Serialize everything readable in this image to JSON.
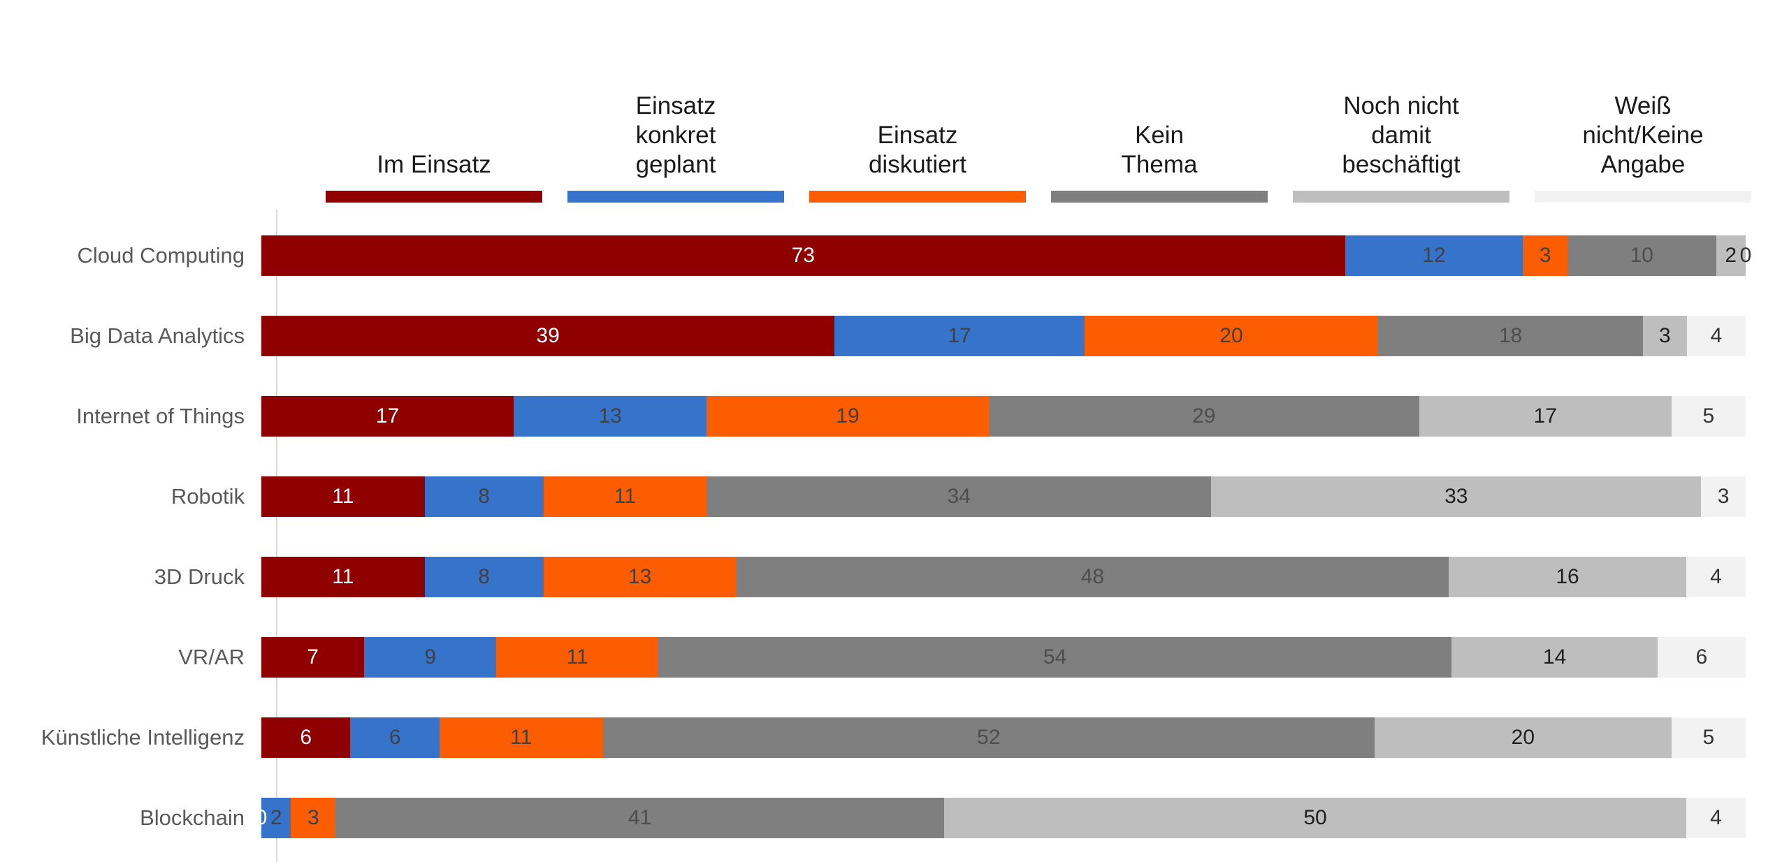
{
  "chart_data": {
    "type": "bar",
    "subtype": "horizontal-stacked-100-percent",
    "title": "",
    "xlabel": "",
    "ylabel": "",
    "xlim": [
      0,
      100
    ],
    "grid": false,
    "legend_position": "top",
    "axis_color": "#d9d9d9",
    "category_label_color": "#595959",
    "categories": [
      "Cloud Computing",
      "Big Data Analytics",
      "Internet of Things",
      "Robotik",
      "3D Druck",
      "VR/AR",
      "Künstliche Intelligenz",
      "Blockchain"
    ],
    "series": [
      {
        "name": "Im Einsatz",
        "legend_label": "Im Einsatz",
        "color": "#8f0000",
        "label_color": "#ffffff",
        "values": [
          73,
          39,
          17,
          11,
          11,
          7,
          6,
          0
        ]
      },
      {
        "name": "Einsatz konkret geplant",
        "legend_label": "Einsatz\nkonkret\ngeplant",
        "color": "#3674cc",
        "label_color": "#404040",
        "values": [
          12,
          17,
          13,
          8,
          8,
          9,
          6,
          2
        ]
      },
      {
        "name": "Einsatz diskutiert",
        "legend_label": "Einsatz\ndiskutiert",
        "color": "#fc5d00",
        "label_color": "#404040",
        "values": [
          3,
          20,
          19,
          11,
          13,
          11,
          11,
          3
        ]
      },
      {
        "name": "Kein Thema",
        "legend_label": "Kein\nThema",
        "color": "#7f7f7f",
        "label_color": "#4d4d4d",
        "values": [
          10,
          18,
          29,
          34,
          48,
          54,
          52,
          41
        ]
      },
      {
        "name": "Noch nicht damit beschäftigt",
        "legend_label": "Noch nicht\ndamit\nbeschäftigt",
        "color": "#bebebe",
        "label_color": "#1f1f1f",
        "values": [
          2,
          3,
          17,
          33,
          16,
          14,
          20,
          50
        ]
      },
      {
        "name": "Weiß nicht/Keine Angabe",
        "legend_label": "Weiß\nnicht/Keine\nAngabe",
        "color": "#f2f2f2",
        "label_color": "#333333",
        "values": [
          0,
          4,
          5,
          3,
          4,
          6,
          5,
          4
        ]
      }
    ]
  }
}
